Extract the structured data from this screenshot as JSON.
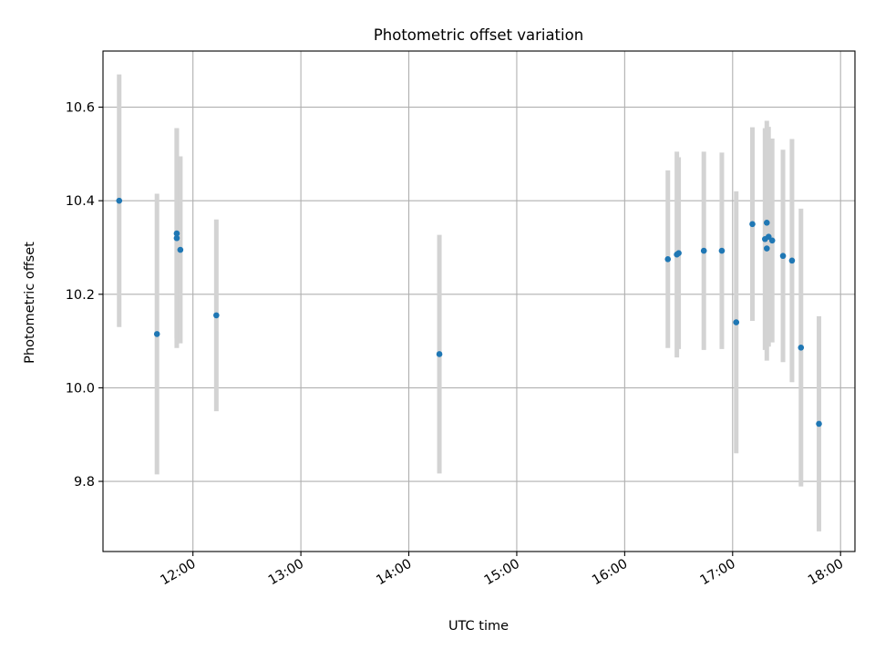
{
  "chart_data": {
    "type": "scatter",
    "title": "Photometric offset variation",
    "xlabel": "UTC time",
    "ylabel": "Photometric offset",
    "x_scale": "time",
    "xlim": [
      "11:10",
      "18:08"
    ],
    "ylim": [
      9.65,
      10.72
    ],
    "x_ticks": [
      "12:00",
      "13:00",
      "14:00",
      "15:00",
      "16:00",
      "17:00",
      "18:00"
    ],
    "y_ticks": [
      "9.8",
      "10.0",
      "10.2",
      "10.4",
      "10.6"
    ],
    "y_tick_values": [
      9.8,
      10.0,
      10.2,
      10.4,
      10.6
    ],
    "grid": true,
    "legend": false,
    "colors": {
      "marker": "#1f77b4",
      "errorbar": "#d3d3d3",
      "grid": "#b0b0b0"
    },
    "series": [
      {
        "points": [
          {
            "t": "11:19",
            "y": 10.4,
            "err": 0.27
          },
          {
            "t": "11:40",
            "y": 10.115,
            "err": 0.3
          },
          {
            "t": "11:51",
            "y": 10.32,
            "err": 0.235
          },
          {
            "t": "11:51",
            "y": 10.33,
            "err": 0.225
          },
          {
            "t": "11:53",
            "y": 10.295,
            "err": 0.2
          },
          {
            "t": "12:13",
            "y": 10.155,
            "err": 0.205
          },
          {
            "t": "14:17",
            "y": 10.072,
            "err": 0.255
          },
          {
            "t": "16:24",
            "y": 10.275,
            "err": 0.19
          },
          {
            "t": "16:29",
            "y": 10.285,
            "err": 0.22
          },
          {
            "t": "16:30",
            "y": 10.288,
            "err": 0.205
          },
          {
            "t": "16:44",
            "y": 10.293,
            "err": 0.212
          },
          {
            "t": "16:54",
            "y": 10.293,
            "err": 0.21
          },
          {
            "t": "17:02",
            "y": 10.14,
            "err": 0.28
          },
          {
            "t": "17:11",
            "y": 10.35,
            "err": 0.207
          },
          {
            "t": "17:18",
            "y": 10.318,
            "err": 0.237
          },
          {
            "t": "17:19",
            "y": 10.353,
            "err": 0.218
          },
          {
            "t": "17:19",
            "y": 10.298,
            "err": 0.24
          },
          {
            "t": "17:20",
            "y": 10.323,
            "err": 0.235
          },
          {
            "t": "17:22",
            "y": 10.315,
            "err": 0.218
          },
          {
            "t": "17:28",
            "y": 10.282,
            "err": 0.227
          },
          {
            "t": "17:33",
            "y": 10.272,
            "err": 0.26
          },
          {
            "t": "17:38",
            "y": 10.086,
            "err": 0.297
          },
          {
            "t": "17:48",
            "y": 9.923,
            "err": 0.23
          }
        ]
      }
    ]
  }
}
